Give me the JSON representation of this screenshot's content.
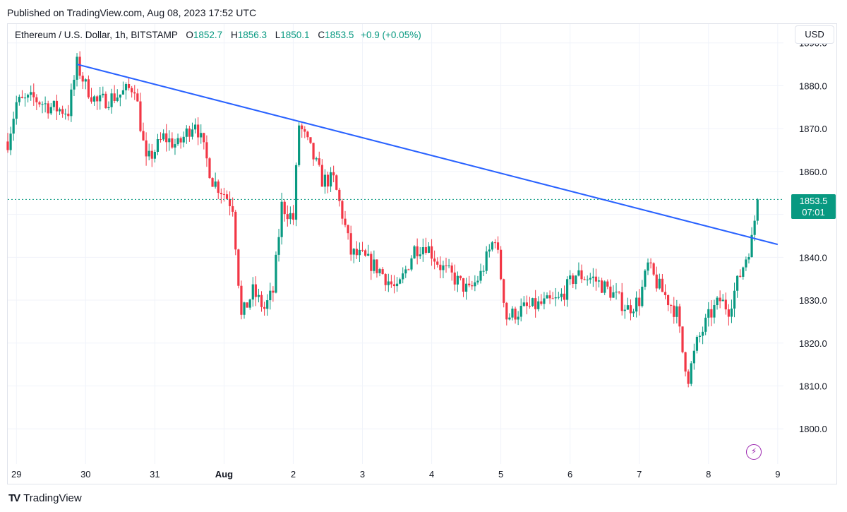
{
  "published": "Published on TradingView.com, Aug 08, 2023 17:52 UTC",
  "legend": {
    "symbol": "Ethereum / U.S. Dollar, 1h, BITSTAMP",
    "o_label": "O",
    "o": "1852.7",
    "h_label": "H",
    "h": "1856.3",
    "l_label": "L",
    "l": "1850.1",
    "c_label": "C",
    "c": "1853.5",
    "change": "+0.9 (+0.05%)"
  },
  "currency": "USD",
  "last_price": {
    "price": "1853.5",
    "countdown": "07:01"
  },
  "brand": "TradingView",
  "colors": {
    "up": "#089981",
    "down": "#f23645",
    "trendline": "#2962ff",
    "grid": "#f0f3fa",
    "alert": "#9c27b0"
  },
  "icons": [
    "tradingview-logo-icon",
    "lightning-alert-icon"
  ],
  "chart_data": {
    "type": "candlestick",
    "timeframe": "1h",
    "y_ticks": [
      "1890.0",
      "1880.0",
      "1870.0",
      "1860.0",
      "1850.0",
      "1840.0",
      "1830.0",
      "1820.0",
      "1810.0",
      "1800.0"
    ],
    "y_range": [
      1791.8,
      1894.4
    ],
    "x_ticks": [
      "29",
      "30",
      "31",
      "Aug",
      "2",
      "3",
      "4",
      "5",
      "6",
      "7",
      "8",
      "9"
    ],
    "x_range_days": [
      "2023-07-28 21:00",
      "2023-08-09 02:00"
    ],
    "trendline": {
      "from": {
        "time": "2023-07-29 21:00",
        "price": 1885
      },
      "to": {
        "time": "2023-08-09 00:00",
        "price": 1843
      }
    },
    "current_price": 1853.5,
    "price_path": [
      [
        "2023-07-28 21:00",
        1867
      ],
      [
        "2023-07-29 00:00",
        1876
      ],
      [
        "2023-07-29 06:00",
        1877
      ],
      [
        "2023-07-29 12:00",
        1875
      ],
      [
        "2023-07-29 18:00",
        1874
      ],
      [
        "2023-07-29 21:00",
        1885
      ],
      [
        "2023-07-30 00:00",
        1880
      ],
      [
        "2023-07-30 04:00",
        1876
      ],
      [
        "2023-07-30 12:00",
        1878
      ],
      [
        "2023-07-30 17:00",
        1880
      ],
      [
        "2023-07-30 21:00",
        1862
      ],
      [
        "2023-07-31 03:00",
        1868
      ],
      [
        "2023-07-31 08:00",
        1866
      ],
      [
        "2023-07-31 14:00",
        1872
      ],
      [
        "2023-07-31 20:00",
        1858
      ],
      [
        "2023-08-01 00:00",
        1855
      ],
      [
        "2023-08-01 03:00",
        1852
      ],
      [
        "2023-08-01 06:00",
        1826
      ],
      [
        "2023-08-01 10:00",
        1832
      ],
      [
        "2023-08-01 14:00",
        1828
      ],
      [
        "2023-08-01 17:00",
        1832
      ],
      [
        "2023-08-01 20:00",
        1852
      ],
      [
        "2023-08-02 00:00",
        1849
      ],
      [
        "2023-08-02 02:00",
        1871
      ],
      [
        "2023-08-02 06:00",
        1865
      ],
      [
        "2023-08-02 10:00",
        1858
      ],
      [
        "2023-08-02 14:00",
        1858
      ],
      [
        "2023-08-02 17:00",
        1850
      ],
      [
        "2023-08-02 20:00",
        1841
      ],
      [
        "2023-08-03 00:00",
        1840
      ],
      [
        "2023-08-03 06:00",
        1837
      ],
      [
        "2023-08-03 12:00",
        1832
      ],
      [
        "2023-08-03 18:00",
        1842
      ],
      [
        "2023-08-03 22:00",
        1843
      ],
      [
        "2023-08-04 03:00",
        1838
      ],
      [
        "2023-08-04 08:00",
        1835
      ],
      [
        "2023-08-04 13:00",
        1832
      ],
      [
        "2023-08-04 17:00",
        1836
      ],
      [
        "2023-08-04 22:00",
        1845
      ],
      [
        "2023-08-05 02:00",
        1826
      ],
      [
        "2023-08-05 08:00",
        1828
      ],
      [
        "2023-08-05 14:00",
        1829
      ],
      [
        "2023-08-05 20:00",
        1830
      ],
      [
        "2023-08-06 02:00",
        1836
      ],
      [
        "2023-08-06 08:00",
        1835
      ],
      [
        "2023-08-06 14:00",
        1832
      ],
      [
        "2023-08-06 20:00",
        1828
      ],
      [
        "2023-08-07 00:00",
        1830
      ],
      [
        "2023-08-07 03:00",
        1838
      ],
      [
        "2023-08-07 06:00",
        1834
      ],
      [
        "2023-08-07 10:00",
        1830
      ],
      [
        "2023-08-07 13:00",
        1827
      ],
      [
        "2023-08-07 15:00",
        1818
      ],
      [
        "2023-08-07 17:00",
        1812
      ],
      [
        "2023-08-07 20:00",
        1820
      ],
      [
        "2023-08-08 00:00",
        1826
      ],
      [
        "2023-08-08 04:00",
        1830
      ],
      [
        "2023-08-08 07:00",
        1828
      ],
      [
        "2023-08-08 10:00",
        1834
      ],
      [
        "2023-08-08 13:00",
        1840
      ],
      [
        "2023-08-08 15:00",
        1844
      ],
      [
        "2023-08-08 17:00",
        1853.5
      ]
    ]
  }
}
